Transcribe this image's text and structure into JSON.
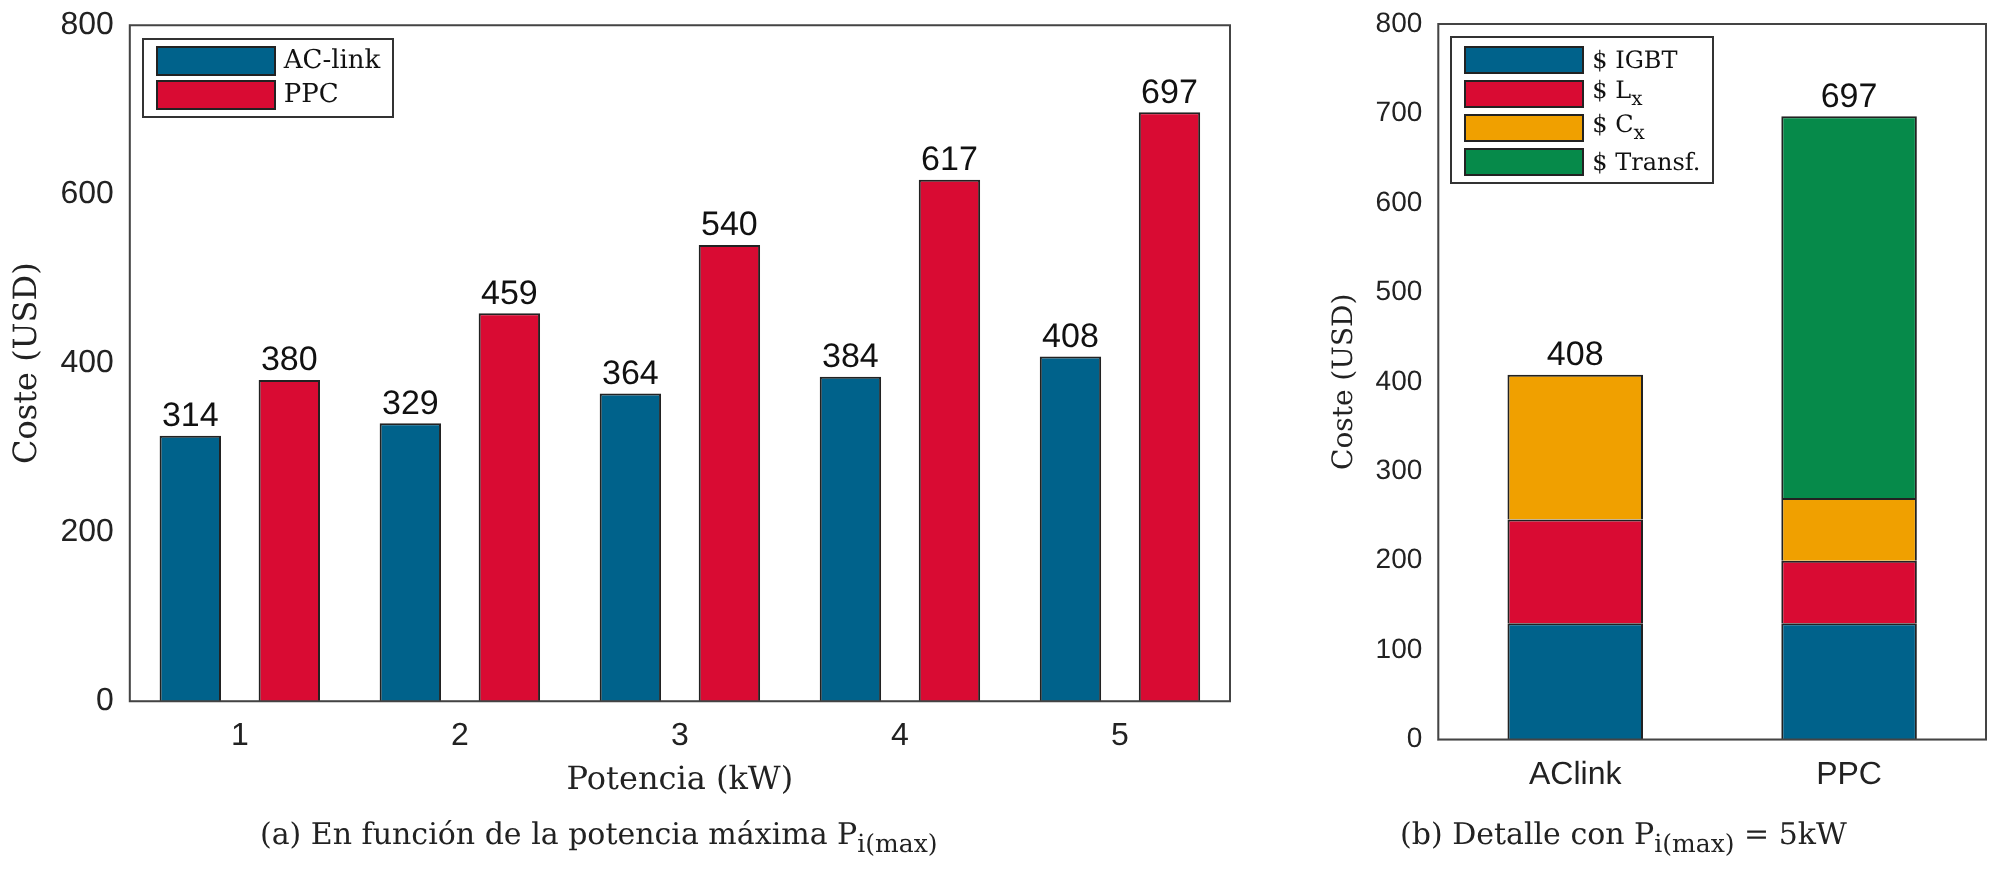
{
  "chart_data": [
    {
      "type": "bar",
      "title": "(a) En función de la potencia máxima P$_{i(max)}$",
      "categories": [
        "1",
        "2",
        "3",
        "4",
        "5"
      ],
      "xlabel": "Potencia (kW)",
      "ylabel": "Coste (USD)",
      "ylim": [
        0,
        800
      ],
      "yticks": [
        0,
        200,
        400,
        600,
        800
      ],
      "legend": "top left",
      "data_labels": true,
      "series": [
        {
          "name": "AC-link",
          "color": "#00628b",
          "values": [
            314,
            329,
            364,
            384,
            408
          ]
        },
        {
          "name": "PPC",
          "color": "#d90b33",
          "values": [
            380,
            459,
            540,
            617,
            697
          ]
        }
      ]
    },
    {
      "type": "bar",
      "title": "(b) Detalle con P$_{i(max)}$ = 5kW",
      "categories": [
        "AClink",
        "PPC"
      ],
      "ylabel": "Coste (USD)",
      "ylim": [
        0,
        800
      ],
      "yticks": [
        0,
        100,
        200,
        300,
        400,
        500,
        600,
        700,
        800
      ],
      "stacked": true,
      "legend": "top left",
      "totals": [
        "408",
        "697"
      ],
      "series": [
        {
          "name": "$ IGBT",
          "color": "#00628b",
          "values": [
            130,
            130
          ]
        },
        {
          "name": "$ L$_{x}$",
          "color": "#d90b33",
          "values": [
            116,
            70
          ]
        },
        {
          "name": "$ C$_{x}$",
          "color": "#f0a000",
          "values": [
            162,
            70
          ]
        },
        {
          "name": "$ Transf.",
          "color": "#068a4a",
          "values": [
            0,
            427
          ]
        }
      ]
    }
  ]
}
